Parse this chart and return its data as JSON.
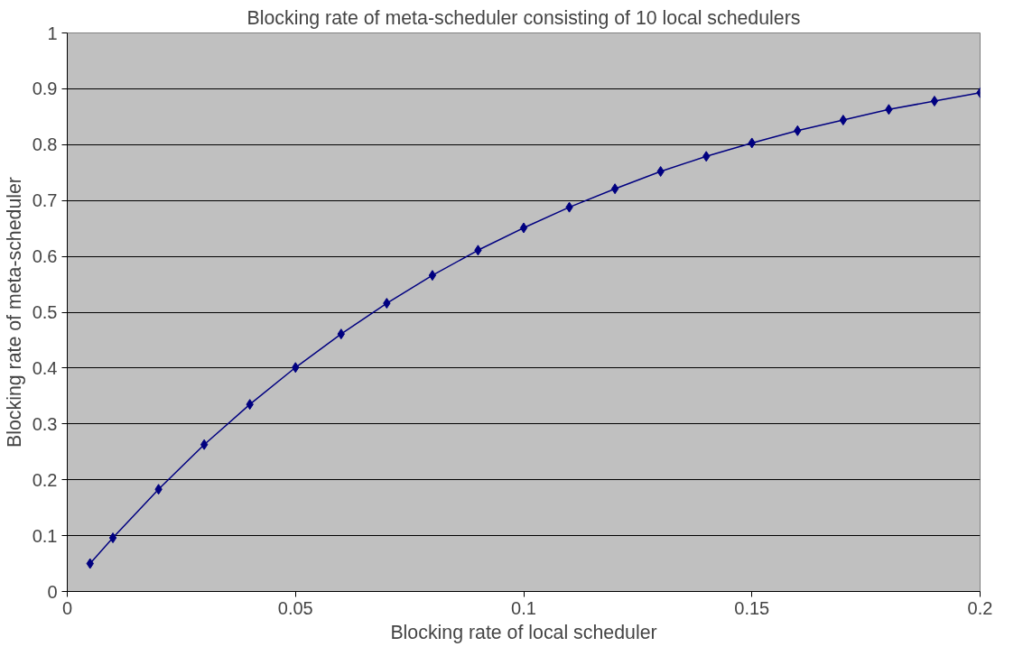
{
  "chart_data": {
    "type": "line",
    "title": "Blocking rate of meta-scheduler consisting of 10 local schedulers",
    "xlabel": "Blocking rate of local scheduler",
    "ylabel": "Blocking rate of meta-scheduler",
    "x": [
      0.005,
      0.01,
      0.02,
      0.03,
      0.04,
      0.05,
      0.06,
      0.07,
      0.08,
      0.09,
      0.1,
      0.11,
      0.12,
      0.13,
      0.14,
      0.15,
      0.16,
      0.17,
      0.18,
      0.19,
      0.2
    ],
    "series": [
      {
        "color": "#000080",
        "values": [
          0.05,
          0.096,
          0.183,
          0.263,
          0.335,
          0.401,
          0.461,
          0.516,
          0.566,
          0.611,
          0.651,
          0.688,
          0.721,
          0.752,
          0.779,
          0.803,
          0.825,
          0.844,
          0.863,
          0.878,
          0.893
        ]
      }
    ],
    "xlim": [
      0,
      0.2
    ],
    "xticks": [
      0,
      0.05,
      0.1,
      0.15,
      0.2
    ],
    "ylim": [
      0,
      1
    ],
    "yticks": [
      0,
      0.1,
      0.2,
      0.3,
      0.4,
      0.5,
      0.6,
      0.7,
      0.8,
      0.9,
      1
    ],
    "grid": "y",
    "marker": "diamond",
    "line_style": "solid"
  }
}
